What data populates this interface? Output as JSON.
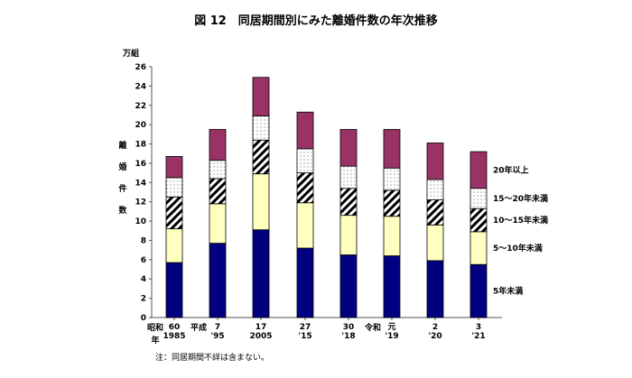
{
  "chart_data": {
    "type": "bar",
    "stacked": true,
    "title": "図 12　同居期間別にみた離婚件数の年次推移",
    "ylabel": "離婚件数",
    "yunit": "万組",
    "xlabel": "年",
    "ylim": [
      0,
      26
    ],
    "yticks": [
      0,
      2,
      4,
      6,
      8,
      10,
      12,
      14,
      16,
      18,
      20,
      22,
      24,
      26
    ],
    "grid": false,
    "legend": "right",
    "era_labels": [
      {
        "label": "昭和",
        "at": 0
      },
      {
        "label": "平成",
        "at": 1
      },
      {
        "label": "令和",
        "at": 5
      }
    ],
    "categories": [
      {
        "era_year": "60",
        "western": "1985"
      },
      {
        "era_year": "7",
        "western": "'95"
      },
      {
        "era_year": "17",
        "western": "2005"
      },
      {
        "era_year": "27",
        "western": "'15"
      },
      {
        "era_year": "30",
        "western": "'18"
      },
      {
        "era_year": "元",
        "western": "'19"
      },
      {
        "era_year": "2",
        "western": "'20"
      },
      {
        "era_year": "3",
        "western": "'21"
      }
    ],
    "series": [
      {
        "name": "5年未満",
        "color": "#000080",
        "pattern": "solid",
        "values": [
          5.7,
          7.7,
          9.1,
          7.2,
          6.5,
          6.4,
          5.9,
          5.5
        ]
      },
      {
        "name": "5～10年未満",
        "color": "#ffffc0",
        "pattern": "solid",
        "values": [
          3.5,
          4.1,
          5.8,
          4.7,
          4.1,
          4.1,
          3.7,
          3.4
        ]
      },
      {
        "name": "10～15年未満",
        "color": "#000000",
        "pattern": "diagonal-stripes",
        "values": [
          3.3,
          2.6,
          3.5,
          3.1,
          2.8,
          2.7,
          2.6,
          2.4
        ]
      },
      {
        "name": "15～20年未満",
        "color": "#ffffff",
        "pattern": "dots",
        "values": [
          2.0,
          1.9,
          2.5,
          2.5,
          2.3,
          2.3,
          2.1,
          2.1
        ]
      },
      {
        "name": "20年以上",
        "color": "#993366",
        "pattern": "solid",
        "values": [
          2.2,
          3.2,
          4.0,
          3.8,
          3.8,
          4.0,
          3.8,
          3.8
        ]
      }
    ],
    "note": "注：同居期間不詳は含まない。"
  }
}
